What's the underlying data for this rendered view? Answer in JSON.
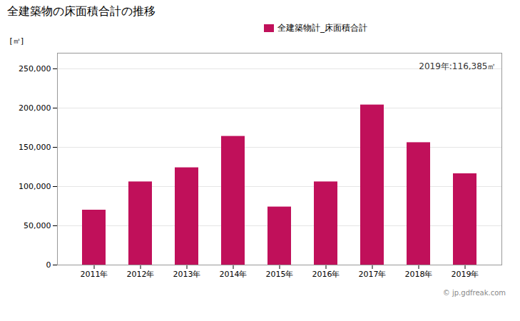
{
  "chart_data": {
    "type": "bar",
    "title": "全建築物の床面積合計の推移",
    "ylabel": "[㎡]",
    "categories": [
      "2011年",
      "2012年",
      "2013年",
      "2014年",
      "2015年",
      "2016年",
      "2017年",
      "2018年",
      "2019年"
    ],
    "series": [
      {
        "name": "全建築物計_床面積合計",
        "color": "#c0105a",
        "values": [
          70000,
          106000,
          124000,
          164000,
          74000,
          106000,
          204000,
          156000,
          116385
        ]
      }
    ],
    "ylim": [
      0,
      270000
    ],
    "yticks": [
      0,
      {
        "value": 50000,
        "label": "50,000"
      },
      {
        "value": 100000,
        "label": "100,000"
      },
      {
        "value": 150000,
        "label": "150,000"
      },
      {
        "value": 200000,
        "label": "200,000"
      },
      {
        "value": 250000,
        "label": "250,000"
      }
    ],
    "grid": true,
    "legend": "top",
    "annotations": [
      "2019年:116,385㎡",
      "© jp.gdfreak.com"
    ]
  }
}
